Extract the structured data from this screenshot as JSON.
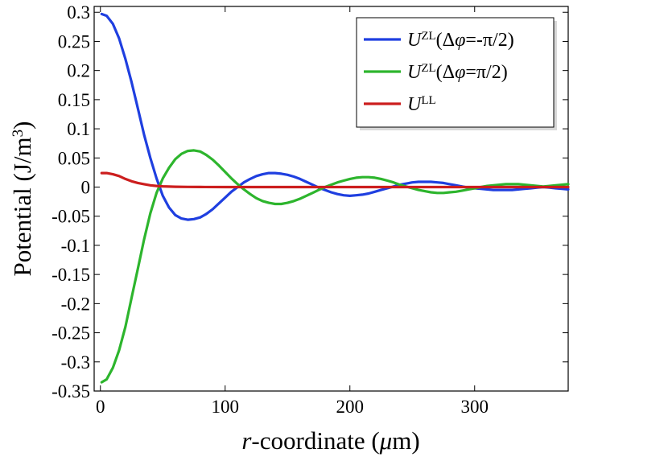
{
  "chart_data": {
    "type": "line",
    "title": "",
    "xlabel": {
      "italic_part": "r",
      "text": "-coordinate (",
      "unit_italic": "μ",
      "unit_rest": "m)"
    },
    "ylabel": {
      "main": "Potential (J/m",
      "superscript": "3",
      "close": ")"
    },
    "xlim": [
      -5,
      375
    ],
    "ylim": [
      -0.35,
      0.31
    ],
    "xticks": [
      0,
      100,
      200,
      300
    ],
    "xtick_labels": [
      "0",
      "100",
      "200",
      "300"
    ],
    "yticks": [
      0.3,
      0.25,
      0.2,
      0.15,
      0.1,
      0.05,
      0,
      -0.05,
      -0.1,
      -0.15,
      -0.2,
      -0.25,
      -0.3,
      -0.35
    ],
    "ytick_labels": [
      "0.3",
      "0.25",
      "0.2",
      "0.15",
      "0.1",
      "0.05",
      "0",
      "-0.05",
      "-0.1",
      "-0.15",
      "-0.2",
      "-0.25",
      "-0.3",
      "-0.35"
    ],
    "legend_position": "top-right",
    "series": [
      {
        "name": "U^ZL(Δφ=-π/2)",
        "legend": {
          "u": "U",
          "sup": "ZL",
          "paren": "(Δ",
          "phi": "φ",
          "rest": "=-π/2)"
        },
        "color": "#1f3fe0",
        "x": [
          1,
          5,
          10,
          15,
          20,
          25,
          30,
          35,
          40,
          45,
          50,
          55,
          60,
          65,
          70,
          75,
          80,
          85,
          90,
          95,
          100,
          105,
          110,
          115,
          120,
          125,
          130,
          135,
          140,
          145,
          150,
          155,
          160,
          165,
          170,
          175,
          180,
          185,
          190,
          195,
          200,
          205,
          210,
          215,
          220,
          225,
          230,
          235,
          240,
          245,
          250,
          255,
          260,
          265,
          270,
          275,
          280,
          285,
          290,
          295,
          300,
          305,
          310,
          315,
          320,
          325,
          330,
          335,
          340,
          345,
          350,
          355,
          360,
          365,
          370,
          375
        ],
        "y": [
          0.297,
          0.294,
          0.28,
          0.255,
          0.22,
          0.18,
          0.135,
          0.09,
          0.05,
          0.015,
          -0.015,
          -0.035,
          -0.048,
          -0.054,
          -0.056,
          -0.055,
          -0.052,
          -0.046,
          -0.038,
          -0.028,
          -0.018,
          -0.008,
          0.0,
          0.008,
          0.014,
          0.019,
          0.022,
          0.024,
          0.024,
          0.023,
          0.021,
          0.018,
          0.014,
          0.009,
          0.004,
          -0.001,
          -0.005,
          -0.009,
          -0.012,
          -0.014,
          -0.015,
          -0.014,
          -0.013,
          -0.011,
          -0.008,
          -0.005,
          -0.002,
          0.001,
          0.004,
          0.006,
          0.008,
          0.009,
          0.009,
          0.009,
          0.008,
          0.007,
          0.005,
          0.003,
          0.001,
          -0.001,
          -0.002,
          -0.003,
          -0.004,
          -0.005,
          -0.005,
          -0.005,
          -0.005,
          -0.004,
          -0.003,
          -0.002,
          -0.001,
          0.0,
          -0.001,
          -0.002,
          -0.003,
          -0.004
        ]
      },
      {
        "name": "U^ZL(Δφ=π/2)",
        "legend": {
          "u": "U",
          "sup": "ZL",
          "paren": "(Δ",
          "phi": "φ",
          "rest": "=π/2)"
        },
        "color": "#2db52d",
        "x": [
          1,
          5,
          10,
          15,
          20,
          25,
          30,
          35,
          40,
          45,
          50,
          55,
          60,
          65,
          70,
          75,
          80,
          85,
          90,
          95,
          100,
          105,
          110,
          115,
          120,
          125,
          130,
          135,
          140,
          145,
          150,
          155,
          160,
          165,
          170,
          175,
          180,
          185,
          190,
          195,
          200,
          205,
          210,
          215,
          220,
          225,
          230,
          235,
          240,
          245,
          250,
          255,
          260,
          265,
          270,
          275,
          280,
          285,
          290,
          295,
          300,
          305,
          310,
          315,
          320,
          325,
          330,
          335,
          340,
          345,
          350,
          355,
          360,
          365,
          370,
          375
        ],
        "y": [
          -0.335,
          -0.33,
          -0.31,
          -0.28,
          -0.24,
          -0.19,
          -0.14,
          -0.09,
          -0.045,
          -0.01,
          0.015,
          0.033,
          0.048,
          0.057,
          0.062,
          0.063,
          0.061,
          0.055,
          0.047,
          0.037,
          0.026,
          0.015,
          0.005,
          -0.004,
          -0.012,
          -0.019,
          -0.024,
          -0.027,
          -0.029,
          -0.029,
          -0.027,
          -0.024,
          -0.02,
          -0.015,
          -0.01,
          -0.005,
          0.0,
          0.004,
          0.008,
          0.011,
          0.014,
          0.016,
          0.017,
          0.017,
          0.016,
          0.014,
          0.011,
          0.008,
          0.004,
          0.001,
          -0.002,
          -0.005,
          -0.007,
          -0.009,
          -0.01,
          -0.01,
          -0.009,
          -0.008,
          -0.006,
          -0.004,
          -0.002,
          0.0,
          0.002,
          0.003,
          0.004,
          0.005,
          0.005,
          0.005,
          0.004,
          0.003,
          0.002,
          0.001,
          0.002,
          0.003,
          0.004,
          0.005
        ]
      },
      {
        "name": "U^LL",
        "legend": {
          "u": "U",
          "sup": "LL",
          "paren": "",
          "phi": "",
          "rest": ""
        },
        "color": "#cc1e1e",
        "x": [
          1,
          5,
          10,
          15,
          20,
          25,
          30,
          35,
          40,
          45,
          50,
          60,
          70,
          80,
          100,
          150,
          200,
          250,
          300,
          350,
          375
        ],
        "y": [
          0.024,
          0.024,
          0.022,
          0.019,
          0.014,
          0.01,
          0.007,
          0.005,
          0.003,
          0.002,
          0.0012,
          0.0006,
          0.0003,
          0.0001,
          0.0,
          0.0,
          0.0,
          0.0,
          0.0,
          0.0,
          0.0
        ]
      }
    ]
  }
}
